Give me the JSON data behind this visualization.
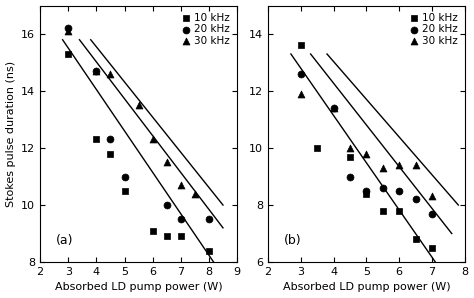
{
  "panel_a": {
    "label": "(a)",
    "xlim": [
      2,
      9
    ],
    "ylim": [
      8,
      17
    ],
    "yticks": [
      8,
      10,
      12,
      14,
      16
    ],
    "xticks": [
      2,
      3,
      4,
      5,
      6,
      7,
      8,
      9
    ],
    "data_10kHz": {
      "x": [
        3.0,
        4.0,
        4.5,
        5.0,
        6.0,
        6.5,
        7.0,
        8.0
      ],
      "y": [
        15.3,
        12.3,
        11.8,
        10.5,
        9.1,
        8.9,
        8.9,
        8.4
      ]
    },
    "data_20kHz": {
      "x": [
        3.0,
        4.0,
        4.5,
        5.0,
        6.5,
        7.0,
        8.0
      ],
      "y": [
        16.2,
        14.7,
        12.3,
        11.0,
        10.0,
        9.5,
        9.5
      ]
    },
    "data_30kHz": {
      "x": [
        3.0,
        4.0,
        4.5,
        5.5,
        6.0,
        6.5,
        7.0,
        7.5
      ],
      "y": [
        16.1,
        14.7,
        14.6,
        13.5,
        12.3,
        11.5,
        10.7,
        10.4
      ]
    },
    "line_10kHz": {
      "x1": 2.8,
      "y1": 15.8,
      "x2": 8.2,
      "y2": 7.95
    },
    "line_20kHz": {
      "x1": 3.4,
      "y1": 15.8,
      "x2": 8.5,
      "y2": 9.2
    },
    "line_30kHz": {
      "x1": 3.8,
      "y1": 15.8,
      "x2": 8.5,
      "y2": 10.0
    }
  },
  "panel_b": {
    "label": "(b)",
    "xlim": [
      2,
      8
    ],
    "ylim": [
      6,
      15
    ],
    "yticks": [
      6,
      8,
      10,
      12,
      14
    ],
    "xticks": [
      2,
      3,
      4,
      5,
      6,
      7,
      8
    ],
    "data_10kHz": {
      "x": [
        3.0,
        3.5,
        4.5,
        5.0,
        5.5,
        6.0,
        6.5,
        7.0
      ],
      "y": [
        13.6,
        10.0,
        9.7,
        8.4,
        7.8,
        7.8,
        6.8,
        6.5
      ]
    },
    "data_20kHz": {
      "x": [
        3.0,
        4.0,
        4.5,
        5.0,
        5.5,
        6.0,
        6.5,
        7.0
      ],
      "y": [
        12.6,
        11.4,
        9.0,
        8.5,
        8.6,
        8.5,
        8.2,
        7.7
      ]
    },
    "data_30kHz": {
      "x": [
        3.0,
        4.0,
        4.5,
        5.0,
        5.5,
        6.0,
        6.5,
        7.0
      ],
      "y": [
        11.9,
        11.4,
        10.0,
        9.8,
        9.3,
        9.4,
        9.4,
        8.3
      ]
    },
    "line_10kHz": {
      "x1": 2.7,
      "y1": 13.3,
      "x2": 7.1,
      "y2": 6.0
    },
    "line_20kHz": {
      "x1": 3.3,
      "y1": 13.3,
      "x2": 7.6,
      "y2": 7.0
    },
    "line_30kHz": {
      "x1": 3.8,
      "y1": 13.3,
      "x2": 7.8,
      "y2": 8.0
    }
  },
  "ylabel": "Stokes pulse duration (ns)",
  "xlabel": "Absorbed LD pump power (W)",
  "legend_labels": [
    "10 kHz",
    "20 kHz",
    "30 kHz"
  ],
  "marker_10kHz": "s",
  "marker_20kHz": "o",
  "marker_30kHz": "^",
  "marker_size": 5,
  "line_color": "black",
  "marker_color": "black",
  "fontsize_label": 8,
  "fontsize_tick": 8,
  "fontsize_legend": 7.5,
  "fontsize_panel_label": 9
}
